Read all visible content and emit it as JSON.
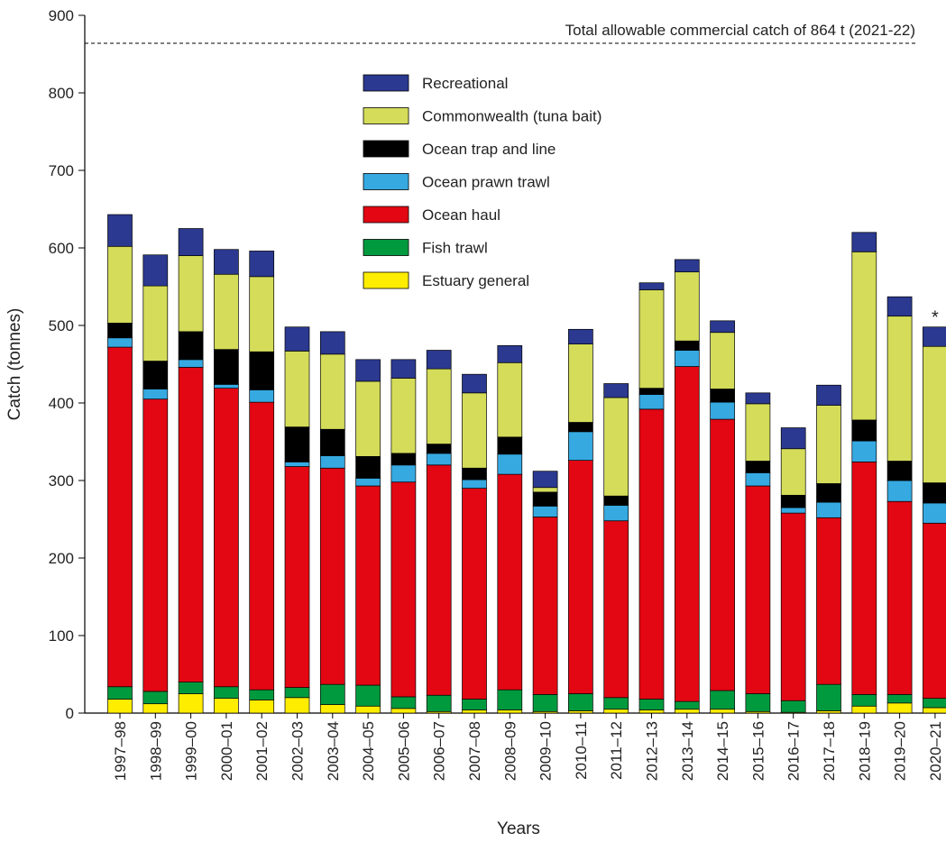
{
  "chart_data": {
    "type": "stacked_bar",
    "y_label": "Catch (tonnes)",
    "x_label": "Years",
    "categories": [
      "1997–98",
      "1998–99",
      "1999–00",
      "2000–01",
      "2001–02",
      "2002–03",
      "2003–04",
      "2004–05",
      "2005–06",
      "2006–07",
      "2007–08",
      "2008–09",
      "2009–10",
      "2010–11",
      "2011–12",
      "2012–13",
      "2013–14",
      "2014–15",
      "2015–16",
      "2016–17",
      "2017–18",
      "2018–19",
      "2019–20",
      "2020–21"
    ],
    "series": [
      {
        "name": "Estuary general",
        "color": "#ffed00",
        "values": [
          18,
          12,
          25,
          19,
          17,
          20,
          11,
          9,
          6,
          2,
          4,
          4,
          2,
          3,
          5,
          4,
          5,
          5,
          2,
          1,
          3,
          9,
          13,
          7
        ]
      },
      {
        "name": "Fish trawl",
        "color": "#009a3e",
        "values": [
          16,
          16,
          15,
          15,
          13,
          13,
          26,
          27,
          15,
          21,
          14,
          26,
          22,
          22,
          15,
          14,
          10,
          24,
          23,
          15,
          34,
          15,
          11,
          12
        ]
      },
      {
        "name": "Ocean haul",
        "color": "#e30613",
        "values": [
          438,
          377,
          406,
          385,
          371,
          285,
          279,
          257,
          277,
          297,
          272,
          278,
          229,
          301,
          228,
          374,
          432,
          350,
          268,
          242,
          215,
          300,
          249,
          226
        ]
      },
      {
        "name": "Ocean prawn trawl",
        "color": "#36a9e1",
        "values": [
          12,
          13,
          10,
          5,
          16,
          6,
          16,
          10,
          22,
          15,
          11,
          26,
          14,
          37,
          20,
          19,
          21,
          22,
          17,
          7,
          20,
          27,
          27,
          26
        ]
      },
      {
        "name": "Ocean trap and line",
        "color": "#000000",
        "values": [
          19,
          36,
          36,
          45,
          49,
          45,
          34,
          28,
          15,
          12,
          15,
          22,
          18,
          12,
          12,
          8,
          12,
          17,
          15,
          16,
          24,
          27,
          25,
          26
        ]
      },
      {
        "name": "Commonwealth (tuna bait)",
        "color": "#d4dc5a",
        "values": [
          99,
          97,
          98,
          97,
          97,
          98,
          97,
          97,
          97,
          97,
          97,
          96,
          6,
          101,
          127,
          127,
          89,
          73,
          74,
          60,
          101,
          217,
          187,
          176
        ]
      },
      {
        "name": "Recreational",
        "color": "#2b3990",
        "values": [
          41,
          40,
          35,
          32,
          33,
          31,
          29,
          28,
          24,
          24,
          24,
          22,
          21,
          19,
          18,
          9,
          16,
          15,
          14,
          27,
          26,
          25,
          25,
          25
        ]
      }
    ],
    "ylim": [
      0,
      900
    ],
    "yticks": [
      0,
      100,
      200,
      300,
      400,
      500,
      600,
      700,
      800,
      900
    ],
    "reference_line": {
      "value": 864,
      "label": "Total allowable commercial catch of 864 t (2021-22)"
    },
    "annotation": "*"
  }
}
